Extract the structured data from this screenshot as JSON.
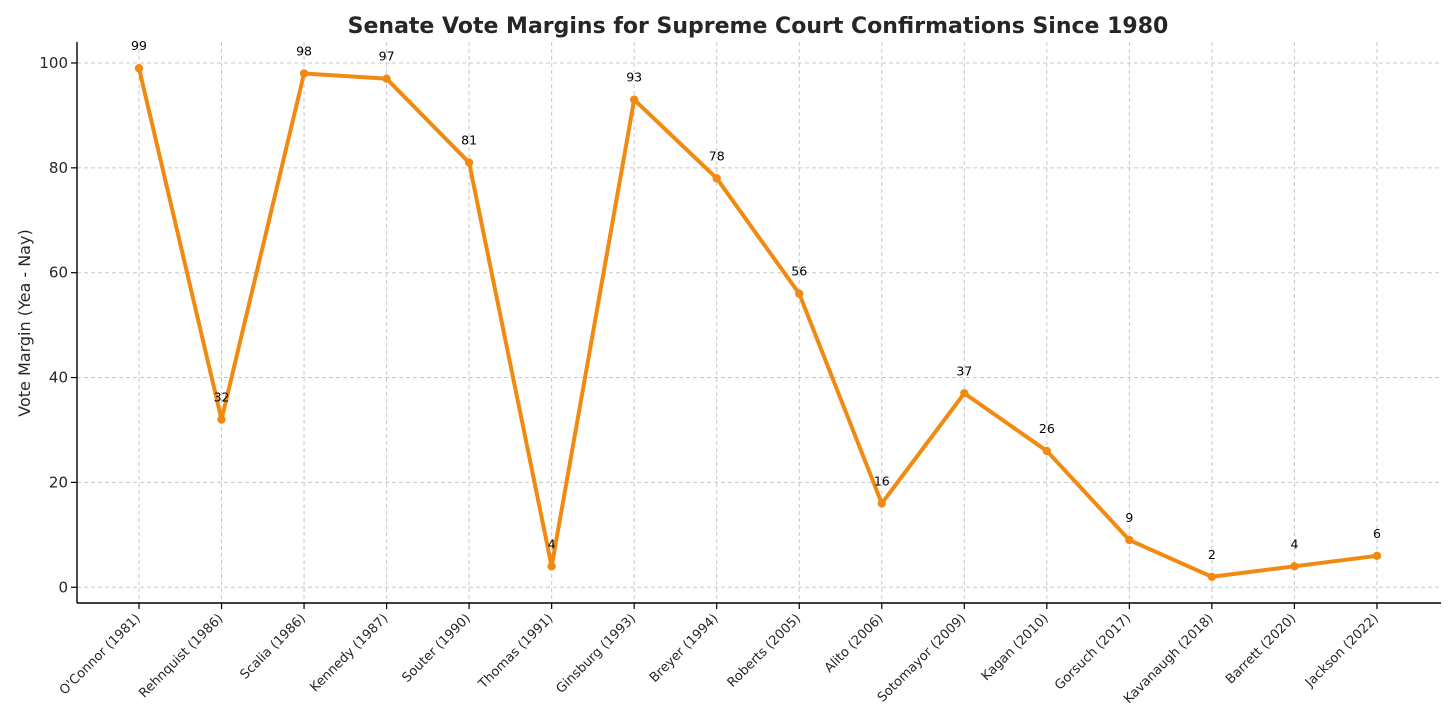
{
  "chart_data": {
    "type": "line",
    "title": "Senate Vote Margins for Supreme Court Confirmations Since 1980",
    "xlabel": "",
    "ylabel": "Vote Margin (Yea - Nay)",
    "categories": [
      "O'Connor (1981)",
      "Rehnquist (1986)",
      "Scalia (1986)",
      "Kennedy (1987)",
      "Souter (1990)",
      "Thomas (1991)",
      "Ginsburg (1993)",
      "Breyer (1994)",
      "Roberts (2005)",
      "Alito (2006)",
      "Sotomayor (2009)",
      "Kagan (2010)",
      "Gorsuch (2017)",
      "Kavanaugh (2018)",
      "Barrett (2020)",
      "Jackson (2022)"
    ],
    "values": [
      99,
      32,
      98,
      97,
      81,
      4,
      93,
      78,
      56,
      16,
      37,
      26,
      9,
      2,
      4,
      6
    ],
    "data_labels": [
      "99",
      "32",
      "98",
      "97",
      "81",
      "4",
      "93",
      "78",
      "56",
      "16",
      "37",
      "26",
      "9",
      "2",
      "4",
      "6"
    ],
    "ylim": [
      -3,
      104
    ],
    "yticks": [
      0,
      20,
      40,
      60,
      80,
      100
    ],
    "ytick_labels": [
      "0",
      "20",
      "40",
      "60",
      "80",
      "100"
    ],
    "grid": true,
    "line_color": "#f28a12",
    "colors": {
      "grid": "#c8c8c8",
      "axis": "#000000",
      "text": "#262626"
    }
  }
}
